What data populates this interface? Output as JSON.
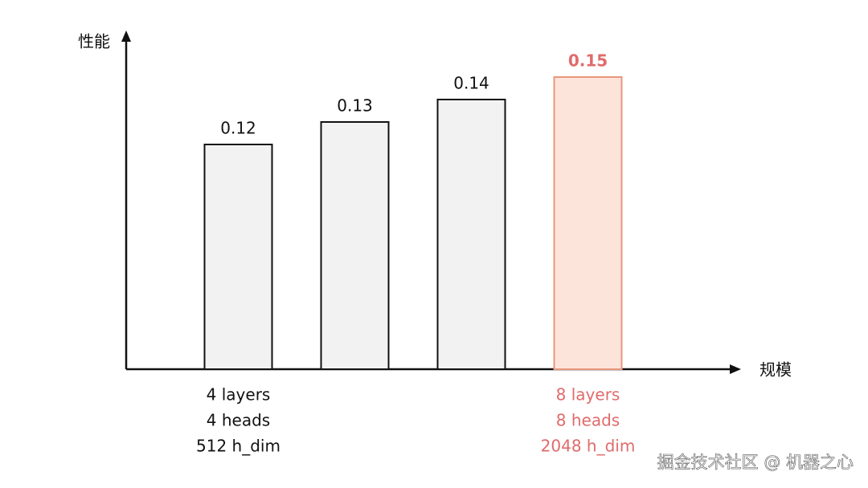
{
  "chart_data": {
    "type": "bar",
    "ylabel": "性能",
    "xlabel": "规模",
    "categories": [
      [
        "4 layers",
        "4 heads",
        "512 h_dim"
      ],
      null,
      null,
      [
        "8 layers",
        "8 heads",
        "2048 h_dim"
      ]
    ],
    "values": [
      0.12,
      0.13,
      0.14,
      0.15
    ],
    "colors": [
      "#f2f2f2",
      "#f2f2f2",
      "#f2f2f2",
      "#fde4da"
    ],
    "edgecolors": [
      "#111111",
      "#111111",
      "#111111",
      "#e8977c"
    ],
    "label_colors": [
      "#111111",
      "#111111",
      "#111111",
      "#e06b6b"
    ],
    "ylim": [
      0.02,
      0.17
    ],
    "grid": false,
    "watermark": "掘金技术社区 @ 机器之心"
  }
}
